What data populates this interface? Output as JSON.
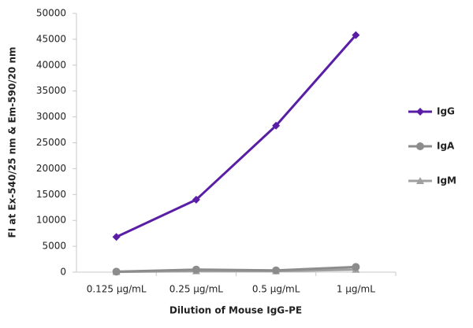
{
  "chart_data": {
    "type": "line",
    "y_label": "FI at Ex-540/25 nm & Em-590/20 nm",
    "x_label": "Dilution of Mouse IgG-PE",
    "categories": [
      "0.125 µg/mL",
      "0.25 µg/mL",
      "0.5 µg/mL",
      "1 µg/mL"
    ],
    "series": [
      {
        "name": "IgG",
        "color": "#5a1ea6",
        "marker": "diamond",
        "values": [
          6800,
          14000,
          28300,
          45800
        ]
      },
      {
        "name": "IgA",
        "color": "#8c8c8c",
        "marker": "circle",
        "values": [
          100,
          500,
          350,
          1000
        ]
      },
      {
        "name": "IgM",
        "color": "#a0a0a0",
        "marker": "triangle",
        "values": [
          50,
          200,
          200,
          500
        ]
      }
    ],
    "ylim": [
      0,
      50000
    ],
    "yticks": [
      0,
      5000,
      10000,
      15000,
      20000,
      25000,
      30000,
      35000,
      40000,
      45000,
      50000
    ],
    "grid": false,
    "legend": "right"
  }
}
